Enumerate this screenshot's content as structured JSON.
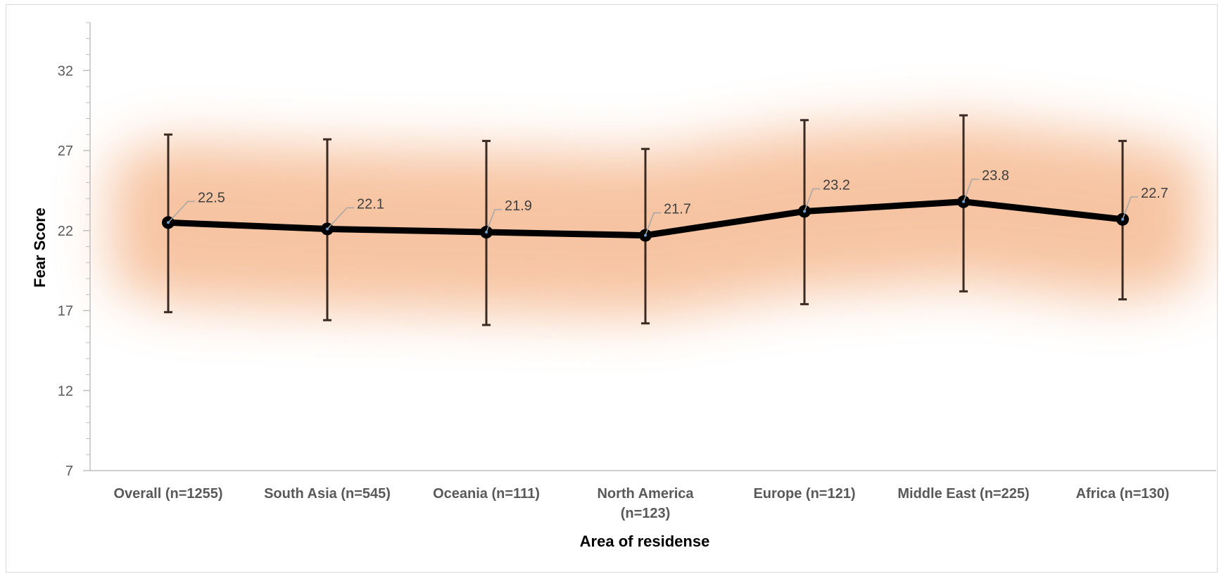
{
  "chart_data": {
    "type": "line",
    "title": "",
    "xlabel": "Area of residense",
    "ylabel": "Fear Score",
    "ylim": [
      7,
      35
    ],
    "yticks": [
      7,
      12,
      17,
      22,
      27,
      32
    ],
    "categories": [
      [
        "Overall (n=1255)"
      ],
      [
        "South Asia (n=545)"
      ],
      [
        "Oceania (n=111)"
      ],
      [
        "North America",
        "(n=123)"
      ],
      [
        "Europe (n=121)"
      ],
      [
        "Middle East (n=225)"
      ],
      [
        "Africa  (n=130)"
      ]
    ],
    "series": [
      {
        "values": [
          22.5,
          22.1,
          21.9,
          21.7,
          23.2,
          23.8,
          22.7
        ],
        "labels": [
          "22.5",
          "22.1",
          "21.9",
          "21.7",
          "23.2",
          "23.8",
          "22.7"
        ],
        "error_high": [
          28.0,
          27.7,
          27.6,
          27.1,
          28.9,
          29.2,
          27.6
        ],
        "error_low": [
          16.9,
          16.4,
          16.1,
          16.2,
          17.4,
          18.2,
          17.7
        ]
      }
    ],
    "grid": false,
    "legend": "none",
    "colors": {
      "line": "#000000",
      "error_bar": "#3b2a22",
      "glow": "#f4b183",
      "axis": "#bfbfbf",
      "leader": "#a6a6a6"
    }
  }
}
